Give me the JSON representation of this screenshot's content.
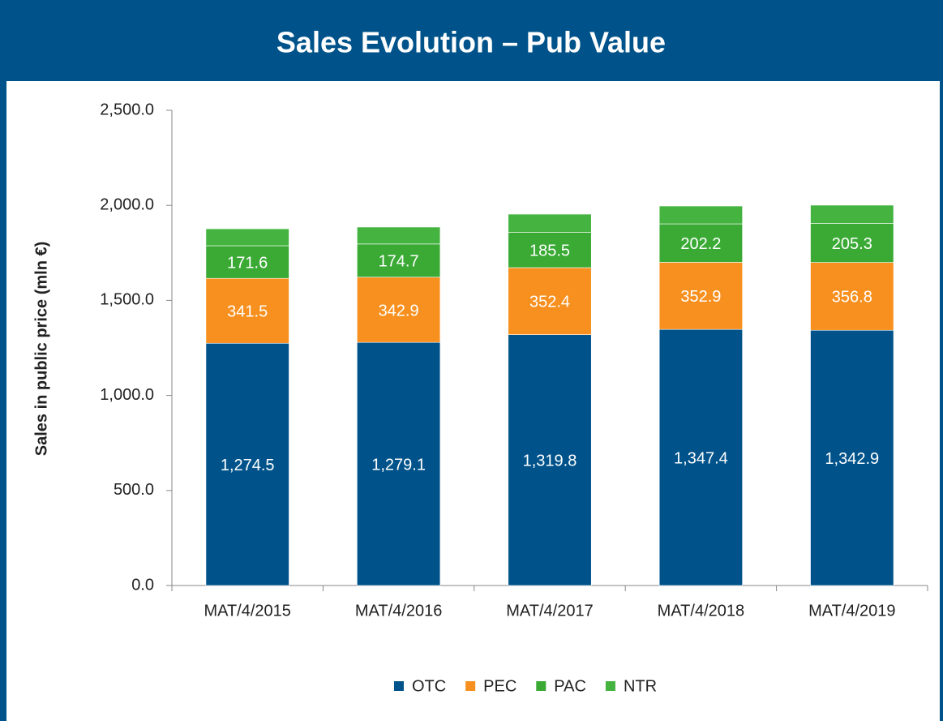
{
  "chart_data": {
    "type": "stacked_bar",
    "title": "Sales Evolution – Pub Value",
    "y_label": "Sales in public price (mln €)",
    "categories": [
      "MAT/4/2015",
      "MAT/4/2016",
      "MAT/4/2017",
      "MAT/4/2018",
      "MAT/4/2019"
    ],
    "series": [
      {
        "name": "OTC",
        "color": "#00538a",
        "values": [
          1274.5,
          1279.1,
          1319.8,
          1347.4,
          1342.9
        ],
        "value_labels": [
          "1,274.5",
          "1,279.1",
          "1,319.8",
          "1,347.4",
          "1,342.9"
        ]
      },
      {
        "name": "PEC",
        "color": "#f7901e",
        "values": [
          341.5,
          342.9,
          352.4,
          352.9,
          356.8
        ],
        "value_labels": [
          "341.5",
          "342.9",
          "352.4",
          "352.9",
          "356.8"
        ]
      },
      {
        "name": "PAC",
        "color": "#3aaa35",
        "values": [
          171.6,
          174.7,
          185.5,
          202.2,
          205.3
        ],
        "value_labels": [
          "171.6",
          "174.7",
          "185.5",
          "202.2",
          "205.3"
        ]
      },
      {
        "name": "NTR",
        "color": "#44b340",
        "values": [
          89,
          89,
          96,
          94,
          96
        ]
      }
    ],
    "ylim": [
      0,
      2500
    ],
    "yticks": [
      {
        "value": 0,
        "label": "0.0"
      },
      {
        "value": 500,
        "label": "500.0"
      },
      {
        "value": 1000,
        "label": "1,000.0"
      },
      {
        "value": 1500,
        "label": "1,500.0"
      },
      {
        "value": 2000,
        "label": "2,000.0"
      },
      {
        "value": 2500,
        "label": "2,500.0"
      }
    ],
    "legend": "bottom"
  }
}
